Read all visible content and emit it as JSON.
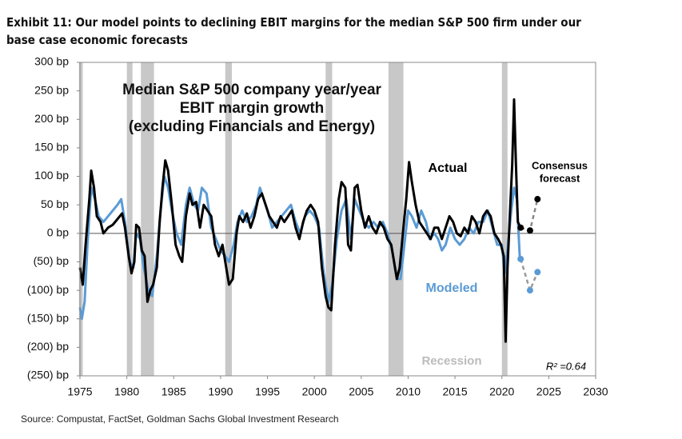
{
  "chart_data": {
    "type": "line",
    "title": "Exhibit 11: Our model points to declining EBIT margins for the median S&P 500 firm under our base case economic forecasts",
    "source": "Source: Compustat, FactSet, Goldman Sachs Global Investment Research",
    "inner_title": [
      "Median S&P 500 company year/year",
      "EBIT margin growth",
      "(excluding Financials and Energy)"
    ],
    "annotations": {
      "consensus": [
        "Consensus",
        "forecast"
      ],
      "recession": "Recession",
      "r2": "R² =0.64"
    },
    "xlim": [
      1975,
      2030
    ],
    "xticks": [
      1975,
      1980,
      1985,
      1990,
      1995,
      2000,
      2005,
      2010,
      2015,
      2020,
      2025,
      2030
    ],
    "ylim": [
      -250,
      300
    ],
    "yticks": [
      {
        "value": 300,
        "label": "300 bp"
      },
      {
        "value": 250,
        "label": "250 bp"
      },
      {
        "value": 200,
        "label": "200 bp"
      },
      {
        "value": 150,
        "label": "150 bp"
      },
      {
        "value": 100,
        "label": "100 bp"
      },
      {
        "value": 50,
        "label": "50 bp"
      },
      {
        "value": 0,
        "label": "0 bp"
      },
      {
        "value": -50,
        "label": "(50) bp"
      },
      {
        "value": -100,
        "label": "(100) bp"
      },
      {
        "value": -150,
        "label": "(150) bp"
      },
      {
        "value": -200,
        "label": "(200) bp"
      },
      {
        "value": -250,
        "label": "(250) bp"
      }
    ],
    "recessions": [
      [
        1974.9,
        1975.3
      ],
      [
        1980.0,
        1980.6
      ],
      [
        1981.5,
        1982.9
      ],
      [
        1990.5,
        1991.2
      ],
      [
        2001.2,
        2001.9
      ],
      [
        2007.9,
        2009.5
      ],
      [
        2020.0,
        2020.6
      ]
    ],
    "recession_color": "#c8c8c8",
    "series": [
      {
        "name": "Modeled",
        "color": "#5b9bd5",
        "x": [
          1975.0,
          1975.2,
          1975.5,
          1975.8,
          1976.2,
          1976.6,
          1977.0,
          1977.5,
          1978.0,
          1978.5,
          1979.0,
          1979.4,
          1979.8,
          1980.3,
          1980.7,
          1981.0,
          1981.4,
          1981.8,
          1982.3,
          1982.7,
          1983.2,
          1983.6,
          1984.0,
          1984.4,
          1984.8,
          1985.3,
          1985.8,
          1986.3,
          1986.7,
          1987.2,
          1987.6,
          1988.0,
          1988.5,
          1989.0,
          1989.5,
          1990.0,
          1990.5,
          1990.9,
          1991.4,
          1991.8,
          1992.3,
          1992.8,
          1993.3,
          1993.8,
          1994.2,
          1994.6,
          1995.0,
          1995.5,
          1996.0,
          1996.5,
          1997.0,
          1997.5,
          1998.0,
          1998.5,
          1999.0,
          1999.5,
          2000.0,
          2000.5,
          2001.0,
          2001.5,
          2001.9,
          2002.4,
          2002.9,
          2003.4,
          2003.9,
          2004.3,
          2004.8,
          2005.3,
          2005.8,
          2006.3,
          2006.8,
          2007.3,
          2007.8,
          2008.3,
          2008.8,
          2009.2,
          2009.6,
          2010.0,
          2010.4,
          2010.9,
          2011.4,
          2011.9,
          2012.3,
          2012.8,
          2013.2,
          2013.6,
          2014.0,
          2014.5,
          2015.0,
          2015.5,
          2016.0,
          2016.5,
          2017.0,
          2017.5,
          2018.0,
          2018.5,
          2019.0,
          2019.5,
          2020.0,
          2020.3,
          2020.6,
          2021.0,
          2021.3,
          2021.6,
          2021.9,
          2022.0
        ],
        "values": [
          -130,
          -150,
          -120,
          -20,
          80,
          60,
          30,
          20,
          30,
          40,
          50,
          60,
          20,
          -50,
          -60,
          0,
          -10,
          -60,
          -100,
          -110,
          -40,
          40,
          100,
          80,
          40,
          0,
          -20,
          50,
          80,
          50,
          40,
          80,
          70,
          10,
          -10,
          -30,
          -40,
          -50,
          -20,
          20,
          40,
          20,
          30,
          50,
          80,
          60,
          40,
          10,
          20,
          30,
          40,
          50,
          20,
          0,
          30,
          40,
          30,
          10,
          -70,
          -120,
          -90,
          -10,
          40,
          60,
          -10,
          60,
          40,
          20,
          10,
          20,
          10,
          20,
          0,
          -30,
          -80,
          -80,
          -20,
          40,
          30,
          10,
          40,
          20,
          -10,
          0,
          -10,
          -30,
          -20,
          10,
          -10,
          -20,
          -10,
          10,
          0,
          20,
          20,
          40,
          10,
          -20,
          -20,
          -70,
          -30,
          40,
          80,
          60,
          -40,
          -45
        ],
        "forecast_x": [
          2022.0,
          2023.0,
          2023.8
        ],
        "forecast_values": [
          -45,
          -100,
          -68
        ]
      },
      {
        "name": "Actual",
        "color": "#000000",
        "x": [
          1975.0,
          1975.3,
          1975.6,
          1976.0,
          1976.2,
          1976.5,
          1976.8,
          1977.2,
          1977.5,
          1978.0,
          1978.5,
          1979.0,
          1979.5,
          1979.8,
          1980.2,
          1980.5,
          1980.8,
          1981.0,
          1981.3,
          1981.6,
          1981.9,
          1982.2,
          1982.5,
          1982.8,
          1983.2,
          1983.5,
          1983.8,
          1984.1,
          1984.4,
          1984.8,
          1985.2,
          1985.6,
          1985.9,
          1986.3,
          1986.7,
          1987.0,
          1987.4,
          1987.8,
          1988.2,
          1988.6,
          1989.0,
          1989.4,
          1989.8,
          1990.2,
          1990.6,
          1990.9,
          1991.3,
          1991.7,
          1992.0,
          1992.4,
          1992.8,
          1993.2,
          1993.6,
          1994.0,
          1994.4,
          1994.8,
          1995.2,
          1995.6,
          1996.0,
          1996.4,
          1996.8,
          1997.2,
          1997.6,
          1998.0,
          1998.4,
          1998.8,
          1999.2,
          1999.6,
          2000.0,
          2000.4,
          2000.8,
          2001.2,
          2001.5,
          2001.8,
          2002.2,
          2002.6,
          2002.9,
          2003.3,
          2003.6,
          2003.9,
          2004.3,
          2004.6,
          2005.0,
          2005.4,
          2005.8,
          2006.2,
          2006.6,
          2007.0,
          2007.4,
          2007.8,
          2008.2,
          2008.5,
          2008.8,
          2009.1,
          2009.5,
          2009.8,
          2010.1,
          2010.4,
          2010.8,
          2011.2,
          2011.6,
          2012.0,
          2012.4,
          2012.8,
          2013.2,
          2013.6,
          2014.0,
          2014.4,
          2014.8,
          2015.2,
          2015.6,
          2016.0,
          2016.4,
          2016.8,
          2017.2,
          2017.6,
          2018.0,
          2018.4,
          2018.8,
          2019.2,
          2019.6,
          2019.9,
          2020.2,
          2020.4,
          2020.6,
          2020.9,
          2021.1,
          2021.3,
          2021.5,
          2021.7,
          2022.0
        ],
        "values": [
          -60,
          -90,
          -20,
          60,
          110,
          80,
          30,
          20,
          0,
          10,
          15,
          25,
          35,
          10,
          -40,
          -70,
          -50,
          15,
          10,
          -30,
          -40,
          -120,
          -100,
          -90,
          -60,
          20,
          80,
          128,
          110,
          50,
          -20,
          -40,
          -50,
          30,
          70,
          50,
          55,
          10,
          50,
          40,
          30,
          -20,
          -40,
          -20,
          -60,
          -90,
          -80,
          0,
          30,
          20,
          35,
          10,
          30,
          60,
          70,
          50,
          30,
          20,
          10,
          30,
          20,
          30,
          40,
          10,
          -10,
          20,
          40,
          50,
          40,
          20,
          -60,
          -110,
          -130,
          -135,
          -20,
          60,
          90,
          80,
          -20,
          -30,
          80,
          85,
          40,
          10,
          30,
          10,
          0,
          20,
          10,
          -10,
          -20,
          -50,
          -80,
          -60,
          10,
          60,
          125,
          90,
          50,
          20,
          10,
          0,
          -10,
          10,
          10,
          -10,
          10,
          30,
          20,
          0,
          -5,
          10,
          0,
          30,
          20,
          0,
          30,
          40,
          30,
          0,
          -10,
          -20,
          -40,
          -190,
          -60,
          50,
          120,
          235,
          120,
          20,
          10
        ],
        "forecast_x": [
          2022.0,
          2023.0,
          2023.8
        ],
        "forecast_values": [
          10,
          5,
          60
        ]
      }
    ]
  }
}
